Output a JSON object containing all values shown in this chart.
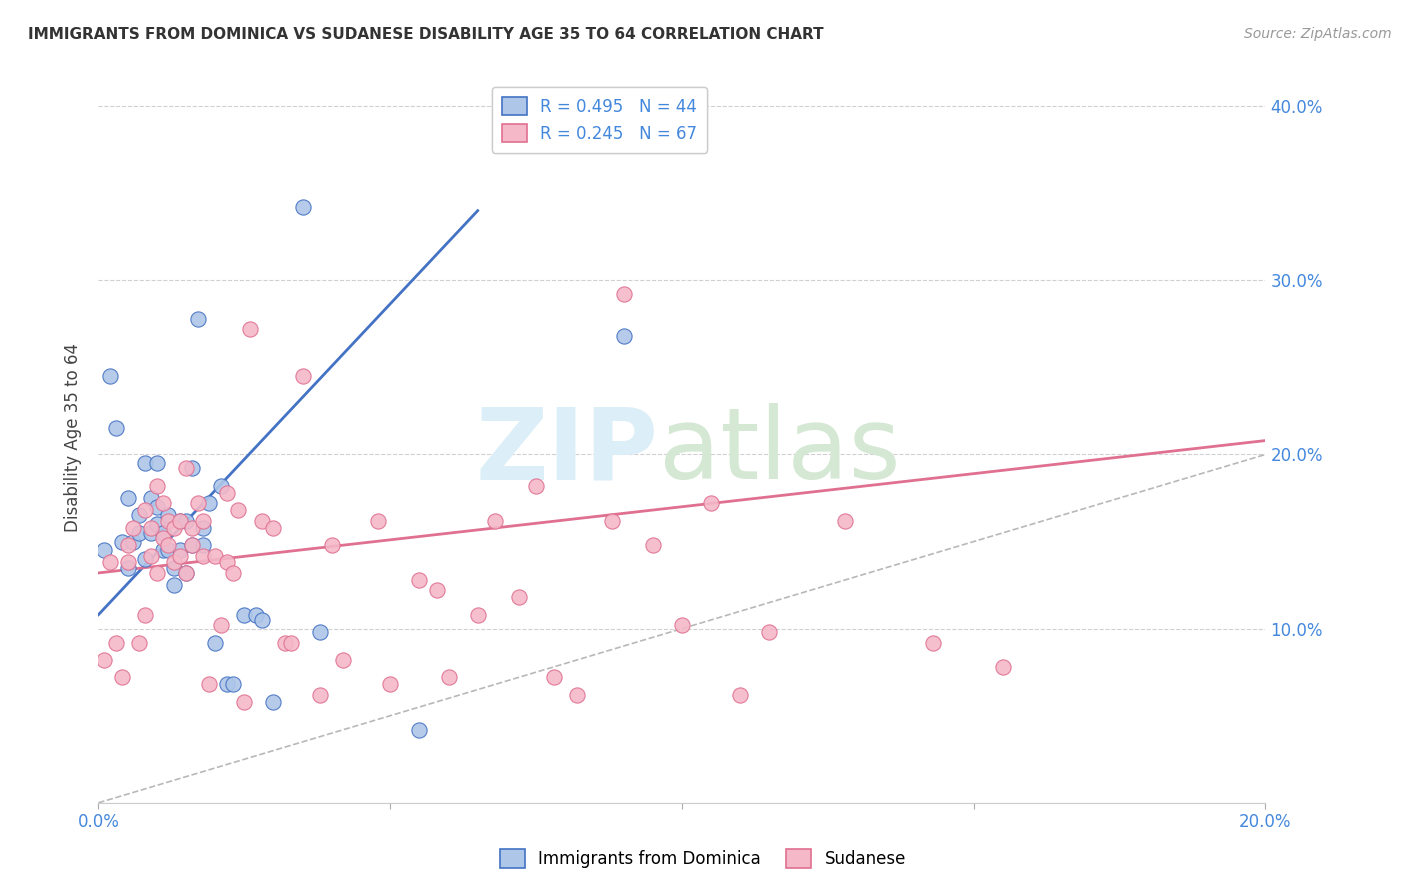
{
  "title": "IMMIGRANTS FROM DOMINICA VS SUDANESE DISABILITY AGE 35 TO 64 CORRELATION CHART",
  "source": "Source: ZipAtlas.com",
  "ylabel": "Disability Age 35 to 64",
  "xlim": [
    0.0,
    0.2
  ],
  "ylim": [
    0.0,
    0.42
  ],
  "xtick_positions": [
    0.0,
    0.05,
    0.1,
    0.15,
    0.2
  ],
  "xtick_labels": [
    "0.0%",
    "",
    "",
    "",
    "20.0%"
  ],
  "ytick_positions": [
    0.0,
    0.1,
    0.2,
    0.3,
    0.4
  ],
  "ytick_labels_right": [
    "",
    "10.0%",
    "20.0%",
    "30.0%",
    "40.0%"
  ],
  "legend1_label": "R = 0.495   N = 44",
  "legend2_label": "R = 0.245   N = 67",
  "legend_bottom_label1": "Immigrants from Dominica",
  "legend_bottom_label2": "Sudanese",
  "color_blue": "#aec6e8",
  "color_pink": "#f4b8c8",
  "line_blue": "#4472c4",
  "line_pink": "#e07090",
  "diag_color": "#b8b8b8",
  "blue_scatter_x": [
    0.001,
    0.002,
    0.003,
    0.004,
    0.005,
    0.005,
    0.006,
    0.007,
    0.007,
    0.008,
    0.008,
    0.009,
    0.009,
    0.01,
    0.01,
    0.01,
    0.011,
    0.011,
    0.012,
    0.012,
    0.013,
    0.013,
    0.014,
    0.014,
    0.015,
    0.015,
    0.016,
    0.016,
    0.017,
    0.018,
    0.018,
    0.019,
    0.02,
    0.021,
    0.022,
    0.023,
    0.025,
    0.027,
    0.028,
    0.03,
    0.035,
    0.038,
    0.055,
    0.09
  ],
  "blue_scatter_y": [
    0.145,
    0.245,
    0.215,
    0.15,
    0.135,
    0.175,
    0.15,
    0.165,
    0.155,
    0.195,
    0.14,
    0.155,
    0.175,
    0.17,
    0.16,
    0.195,
    0.145,
    0.155,
    0.145,
    0.165,
    0.125,
    0.135,
    0.145,
    0.162,
    0.132,
    0.162,
    0.148,
    0.192,
    0.278,
    0.148,
    0.158,
    0.172,
    0.092,
    0.182,
    0.068,
    0.068,
    0.108,
    0.108,
    0.105,
    0.058,
    0.342,
    0.098,
    0.042,
    0.268
  ],
  "pink_scatter_x": [
    0.001,
    0.002,
    0.003,
    0.004,
    0.005,
    0.005,
    0.006,
    0.007,
    0.008,
    0.008,
    0.009,
    0.009,
    0.01,
    0.01,
    0.011,
    0.011,
    0.012,
    0.012,
    0.013,
    0.013,
    0.014,
    0.014,
    0.015,
    0.015,
    0.016,
    0.016,
    0.017,
    0.018,
    0.018,
    0.019,
    0.02,
    0.021,
    0.022,
    0.022,
    0.023,
    0.024,
    0.025,
    0.026,
    0.028,
    0.03,
    0.032,
    0.033,
    0.035,
    0.038,
    0.04,
    0.042,
    0.048,
    0.05,
    0.055,
    0.058,
    0.06,
    0.065,
    0.068,
    0.072,
    0.075,
    0.078,
    0.082,
    0.088,
    0.09,
    0.095,
    0.1,
    0.105,
    0.11,
    0.115,
    0.128,
    0.143,
    0.155
  ],
  "pink_scatter_y": [
    0.082,
    0.138,
    0.092,
    0.072,
    0.138,
    0.148,
    0.158,
    0.092,
    0.108,
    0.168,
    0.142,
    0.158,
    0.132,
    0.182,
    0.152,
    0.172,
    0.148,
    0.162,
    0.138,
    0.158,
    0.142,
    0.162,
    0.132,
    0.192,
    0.148,
    0.158,
    0.172,
    0.142,
    0.162,
    0.068,
    0.142,
    0.102,
    0.138,
    0.178,
    0.132,
    0.168,
    0.058,
    0.272,
    0.162,
    0.158,
    0.092,
    0.092,
    0.245,
    0.062,
    0.148,
    0.082,
    0.162,
    0.068,
    0.128,
    0.122,
    0.072,
    0.108,
    0.162,
    0.118,
    0.182,
    0.072,
    0.062,
    0.162,
    0.292,
    0.148,
    0.102,
    0.172,
    0.062,
    0.098,
    0.162,
    0.092,
    0.078
  ],
  "blue_line_x": [
    0.0,
    0.065
  ],
  "blue_line_y": [
    0.108,
    0.34
  ],
  "pink_line_x": [
    0.0,
    0.2
  ],
  "pink_line_y": [
    0.132,
    0.208
  ],
  "diag_line_x": [
    0.0,
    0.2
  ],
  "diag_line_y": [
    0.0,
    0.2
  ]
}
